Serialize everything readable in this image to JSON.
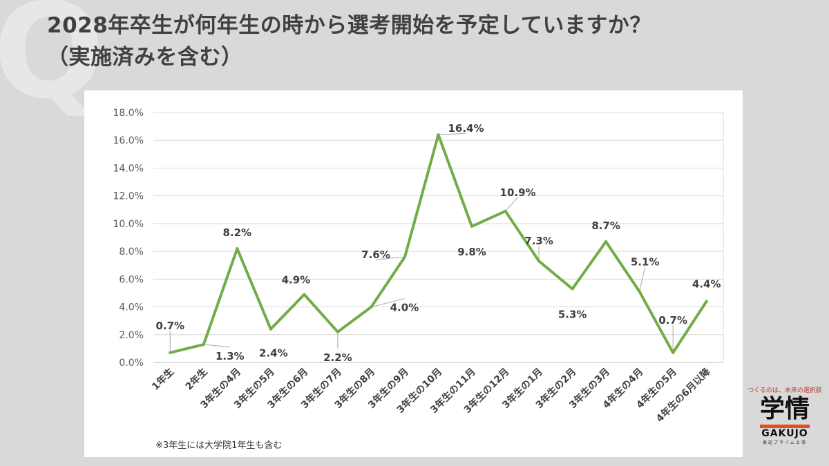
{
  "header": {
    "watermark": "Q",
    "title_line1": "2028年卒生が何年生の時から選考開始を予定していますか？",
    "title_line2": "（実施済みを含む）"
  },
  "note": "※3年生には大学院1年生も含む",
  "logo": {
    "tagline": "つくるのは、未来の選択肢",
    "name": "学情",
    "name_en": "GAKUJO",
    "sub": "東証プライム上場",
    "accent_color": "#e74c1c"
  },
  "chart_data": {
    "type": "line",
    "title": "",
    "xlabel": "",
    "ylabel": "",
    "ylim": [
      0,
      18
    ],
    "y_ticks": [
      "0.0%",
      "2.0%",
      "4.0%",
      "6.0%",
      "8.0%",
      "10.0%",
      "12.0%",
      "14.0%",
      "16.0%",
      "18.0%"
    ],
    "grid": true,
    "legend": "none",
    "line_color": "#70ad47",
    "categories": [
      "1年生",
      "2年生",
      "3年生の4月",
      "3年生の5月",
      "3年生の6月",
      "3年生の7月",
      "3年生の8月",
      "3年生の9月",
      "3年生の10月",
      "3年生の11月",
      "3年生の12月",
      "3年生の1月",
      "3年生の2月",
      "3年生の3月",
      "4年生の4月",
      "4年生の5月",
      "4年生の6月以降"
    ],
    "values": [
      0.7,
      1.3,
      8.2,
      2.4,
      4.9,
      2.2,
      4.0,
      7.6,
      16.4,
      9.8,
      10.9,
      7.3,
      5.3,
      8.7,
      5.1,
      0.7,
      4.4
    ],
    "data_labels": [
      "0.7%",
      "1.3%",
      "8.2%",
      "2.4%",
      "4.9%",
      "2.2%",
      "4.0%",
      "7.6%",
      "16.4%",
      "9.8%",
      "10.9%",
      "7.3%",
      "5.3%",
      "8.7%",
      "5.1%",
      "0.7%",
      "4.4%"
    ]
  }
}
